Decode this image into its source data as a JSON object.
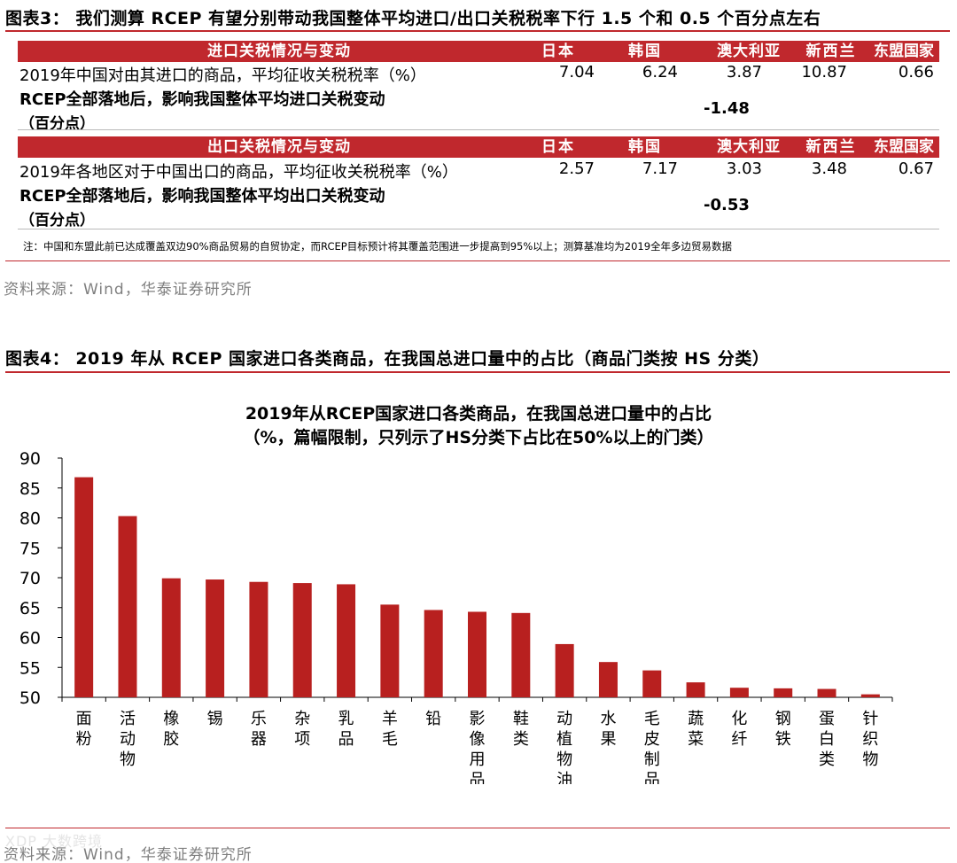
{
  "figure3": {
    "title": "图表3：  我们测算 RCEP 有望分别带动我国整体平均进口/出口关税税率下行 1.5 个和 0.5 个百分点左右",
    "import": {
      "header": "进口关税情况与变动",
      "countries": [
        "日本",
        "韩国",
        "澳大利亚",
        "新西兰",
        "东盟国家"
      ],
      "row1_label": "2019年中国对由其进口的商品，平均征收关税税率（%）",
      "row1_values": [
        "7.04",
        "6.24",
        "3.87",
        "10.87",
        "0.66"
      ],
      "row2_label_line1": "RCEP全部落地后，影响我国整体平均进口关税变动",
      "row2_label_line2": "（百分点）",
      "row2_value": "-1.48"
    },
    "export": {
      "header": "出口关税情况与变动",
      "countries": [
        "日本",
        "韩国",
        "澳大利亚",
        "新西兰",
        "东盟国家"
      ],
      "row1_label": "2019年各地区对于中国出口的商品，平均征收关税税率（%）",
      "row1_values": [
        "2.57",
        "7.17",
        "3.03",
        "3.48",
        "0.67"
      ],
      "row2_label_line1": "RCEP全部落地后，影响我国整体平均出口关税变动",
      "row2_label_line2": "（百分点）",
      "row2_value": "-0.53"
    },
    "note": "注：中国和东盟此前已达成覆盖双边90%商品贸易的自贸协定，而RCEP目标预计将其覆盖范围进一步提高到95%以上；测算基准均为2019全年多边贸易数据",
    "source": "资料来源：Wind，华泰证券研究所"
  },
  "figure4": {
    "title": "图表4：  2019 年从 RCEP 国家进口各类商品，在我国总进口量中的占比（商品门类按 HS 分类）",
    "source": "资料来源：Wind，华泰证券研究所"
  },
  "chart_data": {
    "type": "bar",
    "title": "2019年从RCEP国家进口各类商品，在我国总进口量中的占比",
    "subtitle": "（%，篇幅限制，只列示了HS分类下占比在50%以上的门类）",
    "categories": [
      "面粉",
      "活动物",
      "橡胶",
      "锡",
      "乐器",
      "杂项",
      "乳品",
      "羊毛",
      "铅",
      "影像用品",
      "鞋类",
      "动植物油",
      "水果",
      "毛皮制品",
      "蔬菜",
      "化纤",
      "钢铁",
      "蛋白类",
      "针织物"
    ],
    "values": [
      86.8,
      80.3,
      69.9,
      69.7,
      69.3,
      69.1,
      68.9,
      65.5,
      64.6,
      64.3,
      64.1,
      58.9,
      55.9,
      54.5,
      52.5,
      51.6,
      51.5,
      51.4,
      50.5
    ],
    "ylim": [
      50,
      90
    ],
    "yticks": [
      50,
      55,
      60,
      65,
      70,
      75,
      80,
      85,
      90
    ],
    "bar_color": "#b8201f",
    "grid": false,
    "legend": "none"
  },
  "watermark": "XDP 大数跨境"
}
